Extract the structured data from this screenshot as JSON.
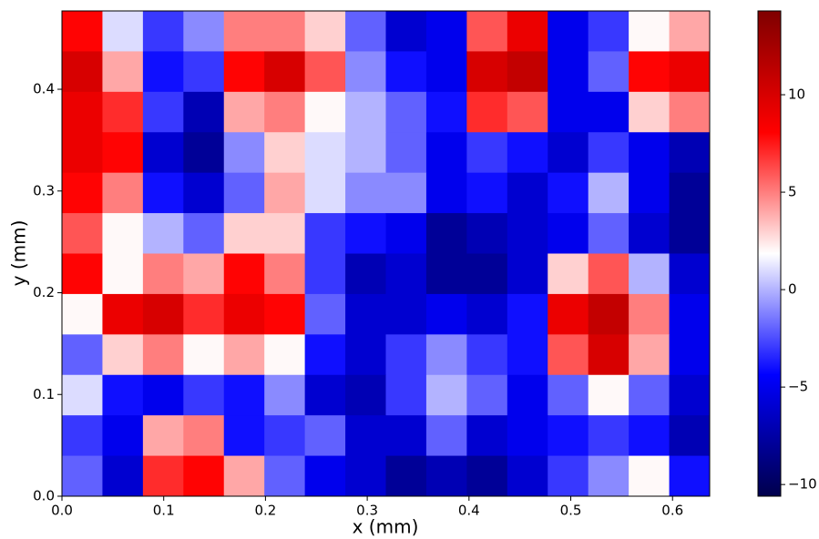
{
  "chart_data": {
    "type": "heatmap",
    "x_label": "x (mm)",
    "y_label": "y (mm)",
    "xlim": [
      0,
      0.6365
    ],
    "ylim": [
      0,
      0.477
    ],
    "xticks": [
      {
        "value": 0,
        "label": "0.0"
      },
      {
        "value": 0.1,
        "label": "0.1"
      },
      {
        "value": 0.2,
        "label": "0.2"
      },
      {
        "value": 0.3,
        "label": "0.3"
      },
      {
        "value": 0.4,
        "label": "0.4"
      },
      {
        "value": 0.5,
        "label": "0.5"
      },
      {
        "value": 0.6,
        "label": "0.6"
      }
    ],
    "yticks": [
      {
        "value": 0,
        "label": "0.0"
      },
      {
        "value": 0.1,
        "label": "0.1"
      },
      {
        "value": 0.2,
        "label": "0.2"
      },
      {
        "value": 0.3,
        "label": "0.3"
      },
      {
        "value": 0.4,
        "label": "0.4"
      }
    ],
    "colormap": [
      "#00004c",
      "#0000ff",
      "#ffffff",
      "#ff0000",
      "#7f0000"
    ],
    "clim": [
      -10.6,
      14.3
    ],
    "cticks": [
      {
        "value": -10,
        "label": "−10"
      },
      {
        "value": -5,
        "label": "−5"
      },
      0,
      5,
      10
    ],
    "values": [
      [
        8,
        1,
        -3,
        -1,
        5,
        5,
        3,
        -2,
        -6,
        -5,
        6,
        9,
        -5,
        -3,
        2,
        4
      ],
      [
        10,
        4,
        -4,
        -3,
        8,
        10,
        6,
        -1,
        -4,
        -5,
        10,
        11,
        -5,
        -2,
        8,
        9
      ],
      [
        9,
        7,
        -3,
        -7,
        4,
        5,
        2,
        0,
        -2,
        -4,
        7,
        6,
        -5,
        -5,
        3,
        5
      ],
      [
        9,
        8,
        -6,
        -8,
        -1,
        3,
        1,
        0,
        -2,
        -5,
        -3,
        -4,
        -6,
        -3,
        -5,
        -7
      ],
      [
        8,
        5,
        -4,
        -6,
        -2,
        4,
        1,
        -1,
        -1,
        -5,
        -4,
        -6,
        -4,
        0,
        -5,
        -8
      ],
      [
        6,
        2,
        0,
        -2,
        3,
        3,
        -3,
        -4,
        -5,
        -8,
        -7,
        -6,
        -5,
        -2,
        -6,
        -8
      ],
      [
        8,
        2,
        5,
        4,
        8,
        5,
        -3,
        -7,
        -6,
        -8,
        -8,
        -6,
        3,
        6,
        0,
        -6
      ],
      [
        2,
        9,
        10,
        7,
        9,
        8,
        -2,
        -6,
        -6,
        -5,
        -6,
        -4,
        9,
        11,
        5,
        -5
      ],
      [
        -2,
        3,
        5,
        2,
        4,
        2,
        -4,
        -6,
        -3,
        -1,
        -3,
        -4,
        6,
        10,
        4,
        -5
      ],
      [
        1,
        -4,
        -5,
        -3,
        -4,
        -1,
        -6,
        -7,
        -3,
        0,
        -2,
        -5,
        -2,
        2,
        -2,
        -6
      ],
      [
        -3,
        -5,
        4,
        5,
        -4,
        -3,
        -2,
        -6,
        -6,
        -2,
        -6,
        -5,
        -4,
        -3,
        -4,
        -7
      ],
      [
        -2,
        -6,
        7,
        8,
        4,
        -2,
        -5,
        -6,
        -8,
        -7,
        -8,
        -6,
        -3,
        -1,
        2,
        -4
      ]
    ]
  }
}
